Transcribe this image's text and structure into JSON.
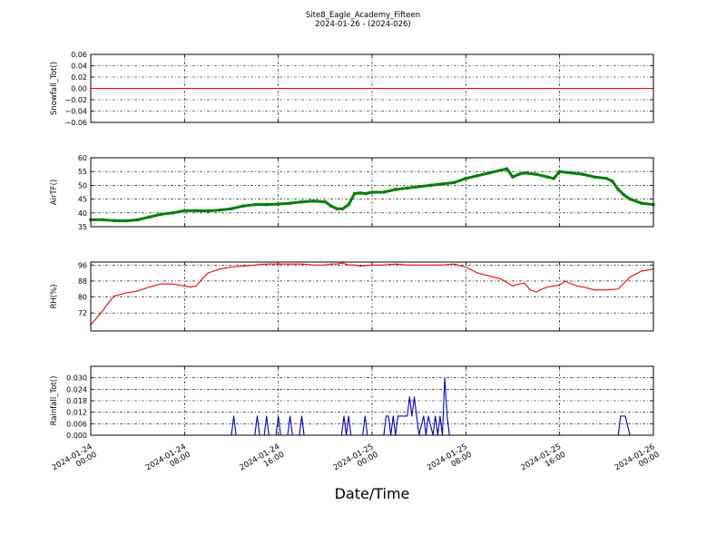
{
  "figure": {
    "title": "Site8_Eagle_Academy_Fifteen",
    "subtitle": "2024-01-26 - (2024-026)",
    "xlabel": "Date/Time",
    "x_tick_labels": [
      [
        "2024-01-24",
        "00:00"
      ],
      [
        "2024-01-24",
        "08:00"
      ],
      [
        "2024-01-24",
        "16:00"
      ],
      [
        "2024-01-25",
        "00:00"
      ],
      [
        "2024-01-25",
        "08:00"
      ],
      [
        "2024-01-25",
        "16:00"
      ],
      [
        "2024-01-26",
        "00:00"
      ]
    ]
  },
  "chart_data": [
    {
      "type": "line",
      "ylabel": "Snowfall_Tot()",
      "color": "#ff0000",
      "marker": "none",
      "xlim": [
        0,
        48
      ],
      "ylim": [
        -0.06,
        0.06
      ],
      "yticks": [
        -0.06,
        -0.04,
        -0.02,
        0.0,
        0.02,
        0.04,
        0.06
      ],
      "ytick_labels": [
        "−0.06",
        "−0.04",
        "−0.02",
        "0.00",
        "0.02",
        "0.04",
        "0.06"
      ],
      "grid": true,
      "x": [
        0,
        48
      ],
      "y": [
        0,
        0
      ]
    },
    {
      "type": "line",
      "ylabel": "AirTF()",
      "color": "#008000",
      "marker": "dot",
      "xlim": [
        0,
        48
      ],
      "ylim": [
        35,
        60
      ],
      "yticks": [
        35,
        40,
        45,
        50,
        55,
        60
      ],
      "ytick_labels": [
        "35",
        "40",
        "45",
        "50",
        "55",
        "60"
      ],
      "grid": true,
      "x": [
        0,
        1,
        2,
        3,
        4,
        5,
        6,
        7,
        8,
        9,
        10,
        11,
        12,
        13,
        14,
        15,
        16,
        17,
        18,
        19,
        20,
        20.5,
        21,
        21.5,
        22,
        22.5,
        23,
        23.5,
        24,
        25,
        26,
        27,
        28,
        29,
        30,
        31,
        32,
        33,
        34,
        35,
        35.5,
        36,
        36.5,
        37,
        38,
        39,
        39.5,
        40,
        41,
        42,
        43,
        44,
        44.5,
        45,
        45.5,
        46,
        47,
        48
      ],
      "y": [
        37.5,
        37.5,
        37.2,
        37.1,
        37.5,
        38.5,
        39.5,
        40,
        40.8,
        40.8,
        40.7,
        41.0,
        41.5,
        42.5,
        43.0,
        43.0,
        43.2,
        43.5,
        44.0,
        44.3,
        44.0,
        42.5,
        41.5,
        41.5,
        43.0,
        47.0,
        47.2,
        47.0,
        47.5,
        47.5,
        48.5,
        49.0,
        49.5,
        50.0,
        50.5,
        51.0,
        52.5,
        53.5,
        54.5,
        55.5,
        56.0,
        53.0,
        54.0,
        54.5,
        54.0,
        53.0,
        52.5,
        55.0,
        54.5,
        54.0,
        53.0,
        52.5,
        51.5,
        48.5,
        46.5,
        45.0,
        43.5,
        43.0
      ]
    },
    {
      "type": "line",
      "ylabel": "RH(%)",
      "color": "#ff0000",
      "marker": "none",
      "xlim": [
        0,
        48
      ],
      "ylim": [
        63,
        97.5
      ],
      "yticks": [
        72,
        80,
        88,
        96
      ],
      "ytick_labels": [
        "72",
        "80",
        "88",
        "96"
      ],
      "grid": true,
      "x": [
        0,
        1,
        1.5,
        2,
        3,
        4,
        5,
        6,
        7,
        7.5,
        8,
        8.5,
        9,
        9.5,
        10,
        11,
        12,
        13,
        14,
        15,
        16,
        17,
        18,
        19,
        20,
        20.5,
        21,
        21.5,
        22,
        22.5,
        23,
        24,
        25,
        26,
        27,
        28,
        29,
        30,
        31,
        32,
        33,
        34,
        35,
        36,
        36.5,
        37,
        37.5,
        38,
        38.5,
        39,
        40,
        40.5,
        41,
        41.5,
        42,
        43,
        44,
        45,
        46,
        47,
        48
      ],
      "y": [
        66,
        73,
        77,
        80.5,
        82,
        83,
        85,
        86.5,
        86.5,
        86,
        85.5,
        85,
        85.5,
        89,
        92,
        94,
        95,
        95.5,
        96,
        96.5,
        96.5,
        96.5,
        96.5,
        96,
        96,
        96.5,
        96.5,
        97,
        96,
        96,
        95.5,
        96,
        96,
        96.5,
        96,
        96,
        96,
        96,
        96.5,
        95,
        92,
        90.5,
        89,
        85.5,
        86.5,
        87,
        83.5,
        82.5,
        84,
        85,
        86,
        88,
        86.5,
        85.5,
        85,
        83.5,
        83.5,
        84,
        90,
        93,
        94
      ]
    },
    {
      "type": "line",
      "ylabel": "Rainfall_Tot()",
      "color": "#0000cc",
      "marker": "none",
      "xlim": [
        0,
        48
      ],
      "ylim": [
        0,
        0.036
      ],
      "yticks": [
        0.0,
        0.006,
        0.012,
        0.018,
        0.024,
        0.03
      ],
      "ytick_labels": [
        "0.000",
        "0.006",
        "0.012",
        "0.018",
        "0.024",
        "0.030"
      ],
      "grid": true,
      "x": [
        0,
        12,
        12.2,
        12.4,
        14,
        14.2,
        14.4,
        14.8,
        15,
        15.2,
        15.8,
        16,
        16.2,
        16.8,
        17,
        17.2,
        17.8,
        18,
        18.2,
        21.4,
        21.6,
        21.8,
        22,
        22.2,
        22.4,
        23.2,
        23.4,
        23.6,
        25,
        25.2,
        25.4,
        25.6,
        25.8,
        26,
        26.2,
        26.4,
        27,
        27.2,
        27.4,
        27.6,
        27.8,
        28,
        28.4,
        28.6,
        28.8,
        29.2,
        29.4,
        29.6,
        29.8,
        30,
        30.2,
        30.4,
        30.6,
        30.8,
        31,
        33,
        45,
        45.2,
        45.6,
        46,
        48
      ],
      "y": [
        0,
        0,
        0.01,
        0,
        0,
        0.01,
        0,
        0,
        0.01,
        0,
        0,
        0.01,
        0,
        0,
        0.01,
        0,
        0,
        0.01,
        0,
        0,
        0.01,
        0,
        0.01,
        0,
        0,
        0,
        0.01,
        0,
        0,
        0.01,
        0.01,
        0,
        0.01,
        0,
        0.01,
        0.01,
        0.01,
        0.02,
        0.01,
        0.02,
        0.01,
        0,
        0.01,
        0,
        0.01,
        0,
        0.01,
        0,
        0.01,
        0,
        0.03,
        0.01,
        0,
        0,
        0,
        0,
        0,
        0.01,
        0.01,
        0,
        0
      ]
    }
  ]
}
